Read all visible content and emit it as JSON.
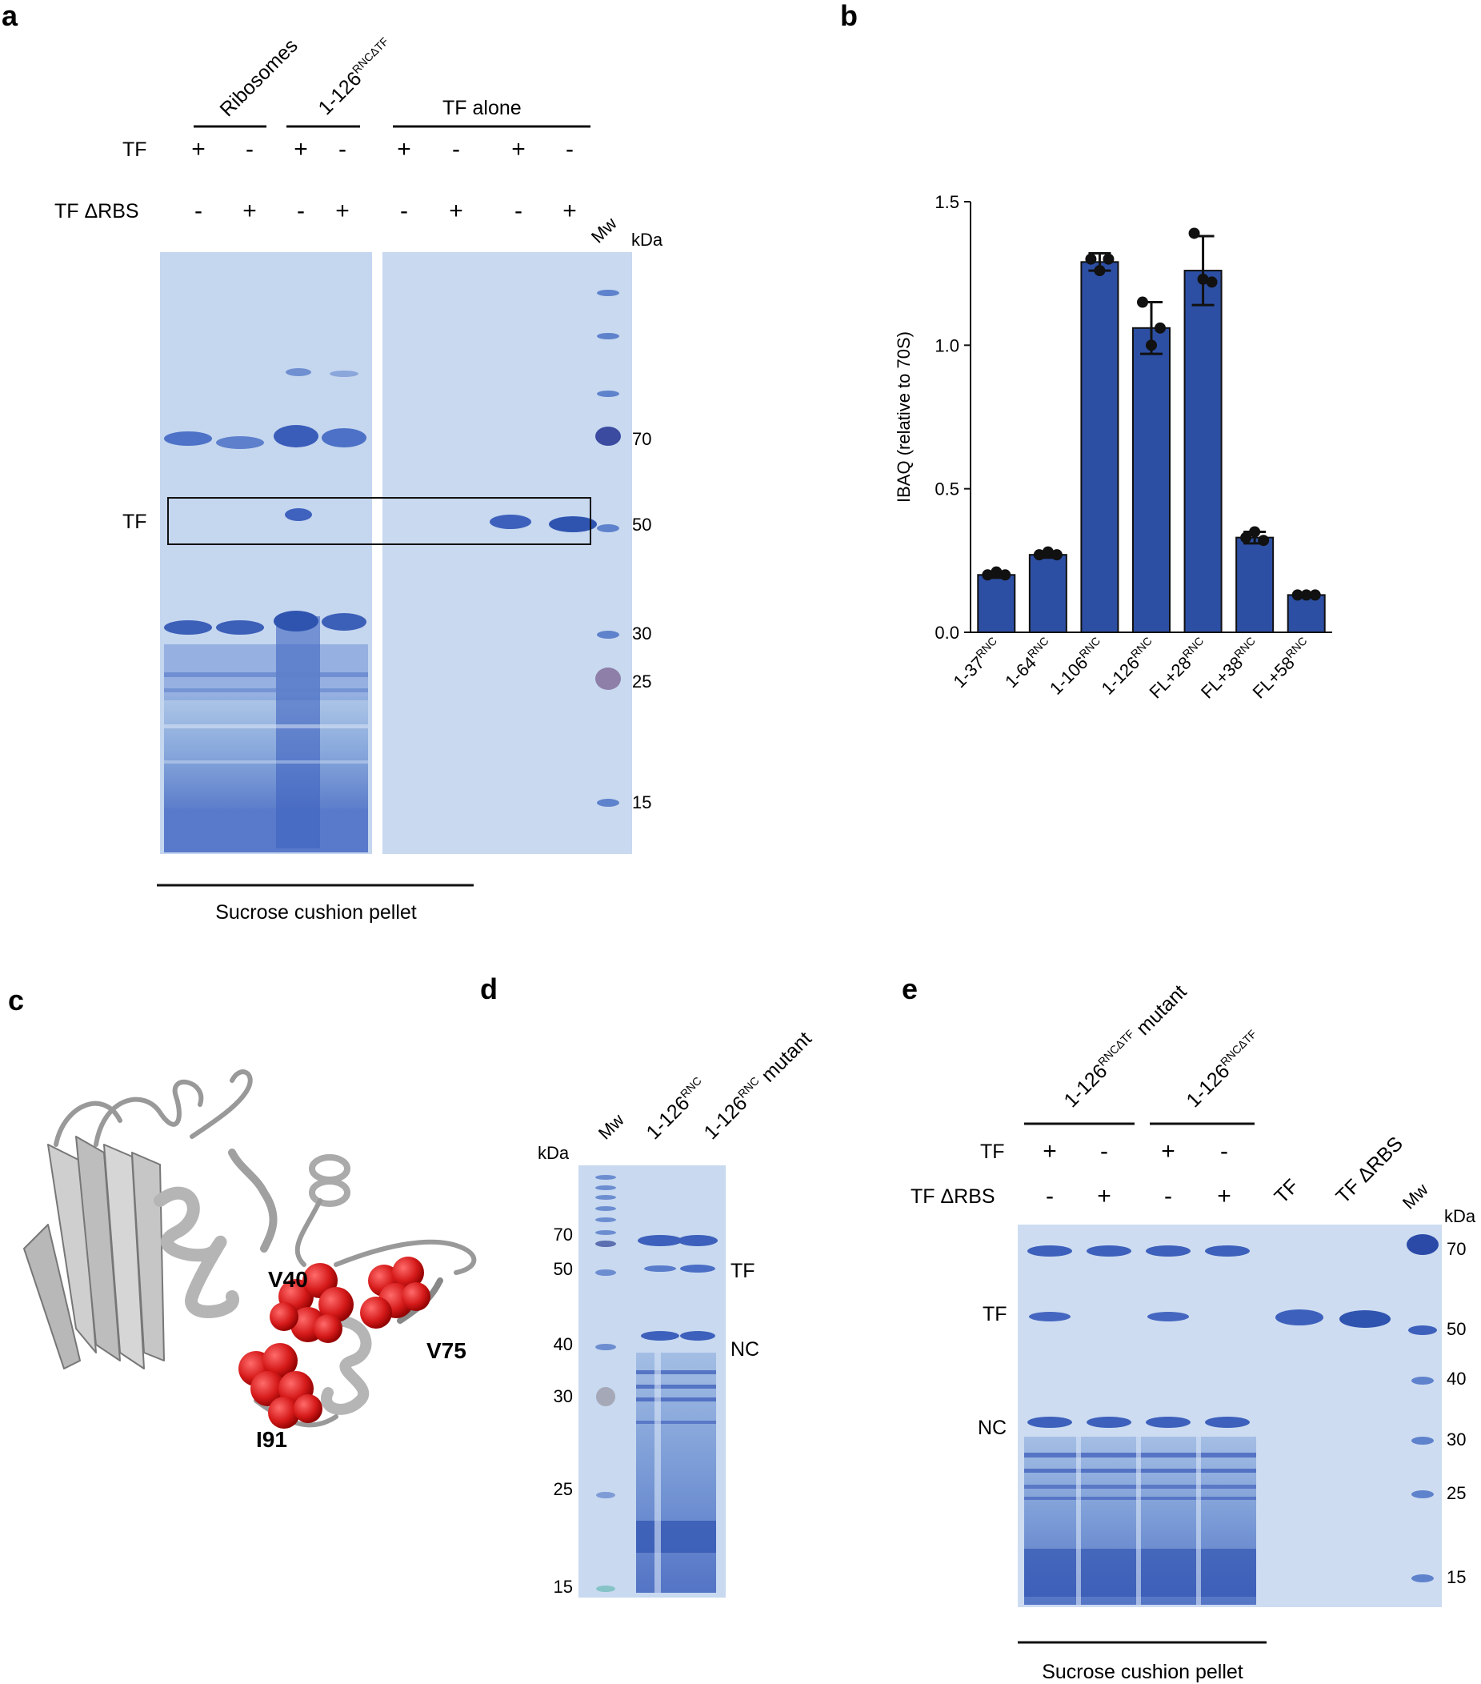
{
  "panel_a": {
    "letter": "a",
    "groups": [
      "Ribosomes",
      "1-126",
      "TF  alone"
    ],
    "group2_sup": "RNCΔTF",
    "row_labels": [
      "TF",
      "TF  ΔRBS"
    ],
    "tf_signs": [
      "+",
      "-",
      "+",
      "-",
      "+",
      "-",
      "+",
      "-"
    ],
    "tfdrbs_signs": [
      "-",
      "+",
      "-",
      "+",
      "-",
      "+",
      "-",
      "+"
    ],
    "mw_label": "Mw",
    "kda_label": "kDa",
    "mw_values": [
      "70",
      "50",
      "30",
      "25",
      "15"
    ],
    "band_label": "TF",
    "bottom_label": "Sucrose cushion pellet"
  },
  "panel_b": {
    "letter": "b",
    "chart_data": {
      "type": "bar",
      "categories": [
        "1-37",
        "1-64",
        "1-106",
        "1-126",
        "FL+28",
        "FL+38",
        "FL+58"
      ],
      "category_sup": "RNC",
      "values": [
        0.2,
        0.27,
        1.29,
        1.06,
        1.26,
        0.33,
        0.13
      ],
      "errors": [
        0.01,
        0.01,
        0.03,
        0.09,
        0.12,
        0.02,
        0.005
      ],
      "points": [
        [
          0.2,
          0.21,
          0.2
        ],
        [
          0.27,
          0.28,
          0.27
        ],
        [
          1.3,
          1.26,
          1.3
        ],
        [
          1.15,
          1.0,
          1.06
        ],
        [
          1.39,
          1.23,
          1.22
        ],
        [
          0.33,
          0.35,
          0.32
        ],
        [
          0.13,
          0.13,
          0.13
        ]
      ],
      "ylabel": "IBAQ (relative to 70S)",
      "yticks": [
        "0.0",
        "0.5",
        "1.0",
        "1.5"
      ],
      "ylim": [
        0,
        1.5
      ],
      "bar_color": "#2d4fa3"
    }
  },
  "panel_c": {
    "letter": "c",
    "residues": [
      "V40",
      "V75",
      "I91"
    ]
  },
  "panel_d": {
    "letter": "d",
    "mw_label": "Mw",
    "lanes": [
      "1-126",
      "1-126"
    ],
    "lane_sup": "RNC",
    "lane2_suffix": " mutant",
    "kda_label": "kDa",
    "mw_values": [
      "70",
      "50",
      "40",
      "30",
      "25",
      "15"
    ],
    "band_labels": [
      "TF",
      "NC"
    ]
  },
  "panel_e": {
    "letter": "e",
    "groups": [
      "1-126",
      "1-126"
    ],
    "group_sup": "RNCΔTF",
    "group1_suffix": " mutant",
    "row_labels": [
      "TF",
      "TF  ΔRBS"
    ],
    "tf_signs": [
      "+",
      "-",
      "+",
      "-"
    ],
    "tfdrbs_signs": [
      "-",
      "+",
      "-",
      "+"
    ],
    "lane_labels": [
      "TF",
      "TF  ΔRBS",
      "Mw"
    ],
    "kda_label": "kDa",
    "mw_values": [
      "70",
      "50",
      "40",
      "30",
      "25",
      "15"
    ],
    "band_labels": [
      "TF",
      "NC"
    ],
    "bottom_label": "Sucrose cushion pellet"
  }
}
